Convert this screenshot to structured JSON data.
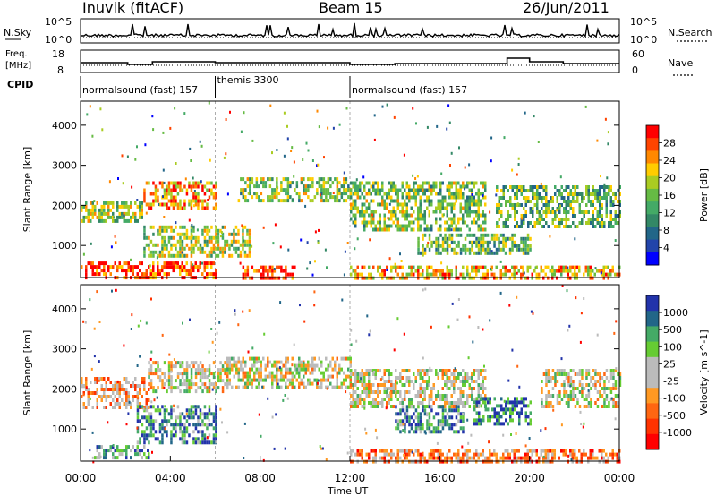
{
  "header": {
    "radar": "Inuvik (fitACF)",
    "beam": "Beam 15",
    "date": "26/Jun/2011"
  },
  "noise_panel": {
    "left_label": "N.Sky",
    "right_label": "N.Search",
    "left_ticks": [
      "10^5",
      "10^0"
    ],
    "right_ticks": [
      "10^5",
      "10^0"
    ]
  },
  "freq_panel": {
    "left_label_1": "Freq.",
    "left_label_2": "[MHz]",
    "right_label": "Nave",
    "left_ticks": [
      "18",
      "8"
    ],
    "right_ticks": [
      "60",
      "0"
    ],
    "cpid_label": "CPID"
  },
  "cpid_segments": [
    {
      "name": "normalsound (fast) 157",
      "start_hour": 0,
      "end_hour": 6
    },
    {
      "name": "themis 3300",
      "start_hour": 6,
      "end_hour": 12
    },
    {
      "name": "normalsound (fast) 157",
      "start_hour": 12,
      "end_hour": 24
    }
  ],
  "chart_data": [
    {
      "type": "heatmap",
      "name": "Power",
      "ylabel": "Slant Range [km]",
      "colorbar_label": "Power [dB]",
      "colorbar_ticks": [
        "28",
        "24",
        "20",
        "16",
        "12",
        "8",
        "4"
      ],
      "colorbar_colors": [
        "#ff0000",
        "#ff4400",
        "#ff8800",
        "#ffcc00",
        "#aacc22",
        "#66bb44",
        "#44aa66",
        "#338866",
        "#226688",
        "#2244aa",
        "#0000ff"
      ],
      "yticks": [
        1000,
        2000,
        3000,
        4000
      ],
      "ylim": [
        200,
        4600
      ],
      "xlim_hours": [
        0,
        24
      ],
      "blobs": [
        {
          "x0": 0.0,
          "x1": 2.7,
          "y0": 1600,
          "y1": 2100,
          "level": 0.55
        },
        {
          "x0": 0.0,
          "x1": 6.0,
          "y0": 200,
          "y1": 600,
          "level": 0.9
        },
        {
          "x0": 2.8,
          "x1": 6.0,
          "y0": 1950,
          "y1": 2600,
          "level": 0.75
        },
        {
          "x0": 2.8,
          "x1": 7.5,
          "y0": 700,
          "y1": 1500,
          "level": 0.55
        },
        {
          "x0": 7.0,
          "x1": 12.0,
          "y0": 2100,
          "y1": 2700,
          "level": 0.5
        },
        {
          "x0": 7.2,
          "x1": 9.5,
          "y0": 200,
          "y1": 500,
          "level": 0.95
        },
        {
          "x0": 12.0,
          "x1": 18.0,
          "y0": 1400,
          "y1": 2600,
          "level": 0.5
        },
        {
          "x0": 12.0,
          "x1": 24.0,
          "y0": 200,
          "y1": 500,
          "level": 0.7
        },
        {
          "x0": 15.0,
          "x1": 20.0,
          "y0": 800,
          "y1": 1300,
          "level": 0.45
        },
        {
          "x0": 18.5,
          "x1": 24.0,
          "y0": 1500,
          "y1": 2500,
          "level": 0.45
        }
      ]
    },
    {
      "type": "heatmap",
      "name": "Velocity",
      "ylabel": "Slant Range [km]",
      "xlabel": "Time UT",
      "colorbar_label": "Velocity [m s^-1]",
      "colorbar_ticks": [
        "1000",
        "500",
        "100",
        "25",
        "-25",
        "-100",
        "-500",
        "-1000"
      ],
      "colorbar_colors": [
        "#2233aa",
        "#226688",
        "#44aa66",
        "#66cc33",
        "#bbbbbb",
        "#bbbbbb",
        "#ff9922",
        "#ff6611",
        "#ff3300",
        "#ff0000"
      ],
      "yticks": [
        1000,
        2000,
        3000,
        4000
      ],
      "ylim": [
        200,
        4600
      ],
      "xlim_hours": [
        0,
        24
      ],
      "xticks": [
        "00:00",
        "04:00",
        "08:00",
        "12:00",
        "16:00",
        "20:00",
        "00:00"
      ],
      "blobs": [
        {
          "x0": 0.0,
          "x1": 3.0,
          "y0": 1500,
          "y1": 2300,
          "level": 0.35
        },
        {
          "x0": 3.0,
          "x1": 6.5,
          "y0": 1900,
          "y1": 2700,
          "level": 0.5
        },
        {
          "x0": 6.5,
          "x1": 12.0,
          "y0": 2000,
          "y1": 2800,
          "level": 0.5
        },
        {
          "x0": 2.5,
          "x1": 6.0,
          "y0": 700,
          "y1": 1600,
          "level": 0.8
        },
        {
          "x0": 0.5,
          "x1": 3.0,
          "y0": 300,
          "y1": 600,
          "level": 0.7
        },
        {
          "x0": 12.0,
          "x1": 18.0,
          "y0": 1600,
          "y1": 2500,
          "level": 0.5
        },
        {
          "x0": 14.0,
          "x1": 17.0,
          "y0": 900,
          "y1": 1600,
          "level": 0.8
        },
        {
          "x0": 17.5,
          "x1": 20.0,
          "y0": 1100,
          "y1": 1800,
          "level": 0.85
        },
        {
          "x0": 12.0,
          "x1": 24.0,
          "y0": 200,
          "y1": 500,
          "level": 0.3
        },
        {
          "x0": 20.5,
          "x1": 24.0,
          "y0": 1600,
          "y1": 2500,
          "level": 0.5
        }
      ]
    }
  ]
}
